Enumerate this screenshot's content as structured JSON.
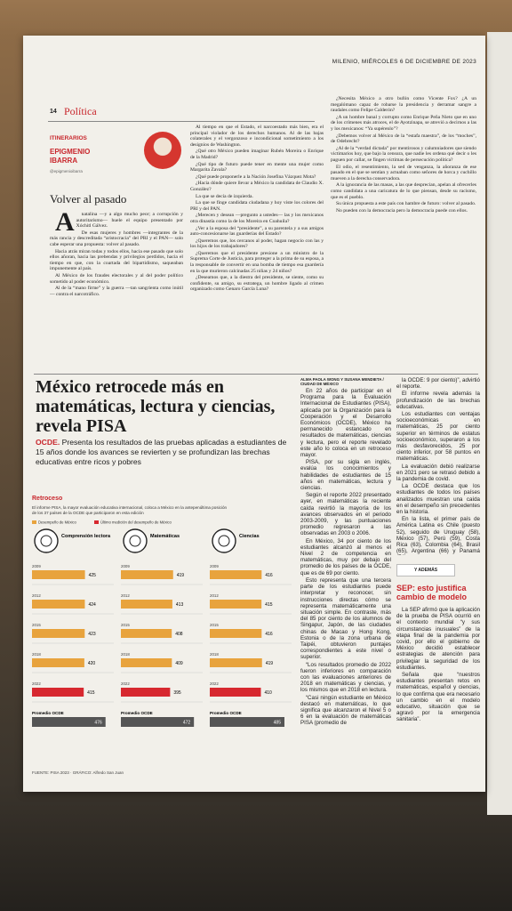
{
  "header": {
    "date": "MILENIO, MIÉRCOLES 6 DE DICIEMBRE DE 2023",
    "page": "14",
    "section": "Política"
  },
  "column": {
    "kicker": "ITINERARIOS",
    "author": "EPIGMENIO IBARRA",
    "handle": "@epigmenioibarra",
    "title": "Volver al pasado",
    "left": [
      "Anatalina —y a algo mucho peor; a corrupción y autoritarismo— huele el equipo presentado por Xóchitl Gálvez.",
      "De esas mujeres y hombres —integrantes de la más rancia y descreditada “aristocracia” del PRI y el PAN— solo cabe esperar una propuesta: volver al pasado.",
      "Hacia atrás miran todas y todos ellos, hacia ese pasado que solo ellos añoran, hacia las prebendas y privilegios perdidos, hacia el tiempo en que, con la coartada del bipartidismo, saqueaban impunemente al país.",
      "Al México de los fraudes electorales y al del poder político sometido al poder económico.",
      "Al de la “mano firme” y la guerra —tan sangrienta como inútil— contra el narcotráfico."
    ],
    "middle": [
      "Al tiempo en que el Estado, el narcoestado más bien, era el principal violador de los derechos humanos. Al de las bajas colaterales y el vergonzoso e incondicional sometimiento a los designios de Washington.",
      "¿Qué otro México pueden imaginar Rubén Moreira o Enrique de la Madrid?",
      "¿Qué tipo de futuro puede tener en mente una mujer como Margarita Zavala?",
      "¿Qué puede proponerle a la Nación Josefina Vázquez Mota?",
      "¿Hacia dónde quiere llevar a México la candidata de Claudio X. González?",
      "La que se decía de izquierda.",
      "La que se finge candidata ciudadana y hoy viste los colores del PRI y del PAN.",
      "¿Merecen y desean —pregunto a ustedes— las y los mexicanos otra dinastía como la de los Moreira en Coahuila?",
      "¿Ver a la esposa del “presidente”, a su parentela y a sus amigos auto-concesionarse las guarderías del Estado?",
      "¿Queremos que, los cercanos al poder, hagan negocio con las y los hijos de los trabajadores?",
      "¿Queremos que el presidente presione a un ministro de la Suprema Corte de Justicia, para proteger a la prima de su esposa, a la responsable de convertir en una bomba de tiempo esa guardería en la que murieron calcinadas 25 niñas y 24 niños?",
      "¿Deseamos que, a la diestra del presidente, se siente, como su confidente, su amigo, su estratega, un hombre ligado al crimen organizado como Genaro García Luna?"
    ],
    "right": [
      "¿Necesita México a otro bufón como Vicente Fox? ¿A un megalómano capaz de robarse la presidencia y derramar sangre a raudales como Felipe Calderón?",
      "¿A un hombre banal y corrupto como Enrique Peña Nieto que en uno de los crímenes más atroces, el de Ayotzinapa, se atrevió a decirnos a las y los mexicanos: “Ya supérenlo”?",
      "¿Debemos volver al México de la “estafa maestra”, de los “moches”, de Odebrecht?",
      "¿Al de la “verdad dictada” por mentirosos y calumniadores que siendo victimarios hoy, que bajo la censura, que nadie les ordena qué decir o les paguen por callar, se fingen víctimas de persecución política?",
      "El odio, el resentimiento, la sed de venganza, la añoranza de ese pasado en el que se sentían y actuaban como señores de horca y cuchillo mueven a la derecha conservadora.",
      "A la ignorancia de las masas, a las que desprecian, apelan al ofrecerles como candidata a una caricatura de lo que piensan, desde su racismo, que es el pueblo.",
      "Su única propuesta a este país con hambre de futuro: volver al pasado.",
      "No pueden con la democracia pero la democracia puede con ellos."
    ]
  },
  "article": {
    "headline": "México retrocede más en matemáticas, lectura y ciencias, revela PISA",
    "lead_tag": "OCDE.",
    "lead": "Presenta los resultados de las pruebas aplicadas a estudiantes de 15 años donde los avances se revierten y se profundizan las brechas educativas entre ricos y pobres",
    "byline": "ALMA PAOLA WONG Y SUSANA MENDIETA / CIUDAD DE MÉXICO",
    "col1": [
      "En 22 años de participar en el Programa para la Evaluación Internacional de Estudiantes (PISA), aplicada por la Organización para la Cooperación y el Desarrollo Económicos (OCDE), México ha permanecido estancado en resultados de matemáticas, ciencias y lectura, pero el reporte revelado este año lo coloca en un retroceso mayor.",
      "PISA, por su sigla en inglés, evalúa los conocimientos y habilidades de estudiantes de 15 años en matemáticas, lectura y ciencias.",
      "Según el reporte 2022 presentado ayer, en matemáticas la reciente caída revirtió la mayoría de los avances observados en el periodo 2003-2009, y las puntuaciones promedio regresaron a las observadas en 2003 o 2006.",
      "En México, 34 por ciento de los estudiantes alcanzó al menos el Nivel 2 de competencia en matemáticas, muy por debajo del promedio de los países de la OCDE, que es de 69 por ciento.",
      "Esto representa que una tercera parte de los estudiantes puede interpretar y reconocer, sin instrucciones directas cómo se representa matemáticamente una situación simple. En contraste, más del 85 por ciento de los alumnos de Singapur, Japón, de las ciudades chinas de Macao y Hong Kong, Estonia o de la zona urbana de Taipéi, obtuvieron puntajes correspondientes a este nivel o superior.",
      "“Los resultados promedio de 2022 fueron inferiores en comparación con las evaluaciones anteriores de 2018 en matemáticas y ciencias, y los mismos que en 2018 en lectura.",
      "“Casi ningún estudiante en México destacó en matemáticas, lo que significa que alcanzaron el Nivel 5 o 6 en la evaluación de matemáticas PISA (promedio de"
    ],
    "col2": [
      "la OCDE: 9 por ciento)”, advirtió el reporte.",
      "El informe revela además la profundización de las brechas educativas.",
      "Los estudiantes con ventajas socioeconómicas en matemáticas, 25 por ciento superior en términos de estatus socioeconómico, superaron a los más desfavorecidos, 25 por ciento inferior, por 58 puntos en matemáticas.",
      "La evaluación debió realizarse en 2021 pero se retrasó debido a la pandemia de covid.",
      "La OCDE destaca que los estudiantes de todos los países analizados muestran una caída en el desempeño sin precedentes en la historia.",
      "En la lista, el primer país de América Latina es Chile (puesto 52), seguido de Uruguay (58), México (57), Perú (59), Costa Rica (63), Colombia (64), Brasil (65), Argentina (66) y Panamá (74)."
    ]
  },
  "sidebar": {
    "kicker": "Y ADEMÁS",
    "title": "SEP: esto justifica cambio de modelo",
    "body": [
      "La SEP afirmó que la aplicación de la prueba de PISA ocurrió en el contexto mundial “y sus circunstancias inusuales” de la etapa final de la pandemia por covid, por ello el gobierno de México decidió establecer estrategias de atención para privilegiar la seguridad de los estudiantes.",
      "Señala que “nuestros estudiantes presentan retos en matemáticas, español y ciencias, lo que confirma que era necesario un cambio en el modelo educativo, situación que se agravó por la emergencia sanitaria”."
    ]
  },
  "infographic": {
    "title": "Retroceso",
    "subtitle": "El informe PISA, la mayor evaluación educativa internacional, coloca a México en la antepenúltima posición de los 37 países de la OCDE que participaron en esta edición",
    "legend": [
      {
        "label": "Desempeño de México",
        "color": "#e8a33d"
      },
      {
        "label": "Último medición del desempeño de México",
        "color": "#d7282f"
      }
    ],
    "years": [
      "2009",
      "2012",
      "2015",
      "2018",
      "2022"
    ],
    "avg_label": "Promedio OCDE",
    "avg_color": "#555555",
    "panels": [
      {
        "label": "Comprensión lectora",
        "values": [
          425,
          424,
          423,
          420,
          415
        ],
        "avg": 476
      },
      {
        "label": "Matemáticas",
        "values": [
          419,
          413,
          408,
          409,
          395
        ],
        "avg": 472
      },
      {
        "label": "Ciencias",
        "values": [
          416,
          415,
          416,
          419,
          410
        ],
        "avg": 485
      }
    ],
    "source": "FUENTE: PISA 2023 · GRÁFICO: Alfredo San Juan"
  }
}
